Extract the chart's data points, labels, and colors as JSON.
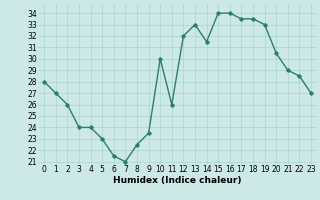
{
  "x": [
    0,
    1,
    2,
    3,
    4,
    5,
    6,
    7,
    8,
    9,
    10,
    11,
    12,
    13,
    14,
    15,
    16,
    17,
    18,
    19,
    20,
    21,
    22,
    23
  ],
  "y": [
    28,
    27,
    26,
    24,
    24,
    23,
    21.5,
    21,
    22.5,
    23.5,
    30,
    26,
    32,
    33,
    31.5,
    34,
    34,
    33.5,
    33.5,
    33,
    30.5,
    29,
    28.5,
    27
  ],
  "ylim": [
    20.8,
    34.8
  ],
  "xlim": [
    -0.5,
    23.5
  ],
  "yticks": [
    21,
    22,
    23,
    24,
    25,
    26,
    27,
    28,
    29,
    30,
    31,
    32,
    33,
    34
  ],
  "xticks": [
    0,
    1,
    2,
    3,
    4,
    5,
    6,
    7,
    8,
    9,
    10,
    11,
    12,
    13,
    14,
    15,
    16,
    17,
    18,
    19,
    20,
    21,
    22,
    23
  ],
  "xlabel": "Humidex (Indice chaleur)",
  "line_color": "#2e7d6e",
  "marker": "D",
  "marker_size": 1.8,
  "linewidth": 1.0,
  "bg_color": "#cce9e7",
  "grid_color": "#aad4d1",
  "tick_fontsize": 5.5,
  "xlabel_fontsize": 6.5
}
